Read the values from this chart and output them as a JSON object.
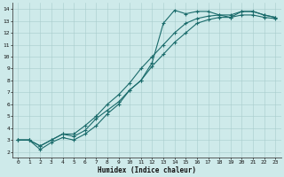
{
  "xlabel": "Humidex (Indice chaleur)",
  "bg_color": "#ceeaea",
  "line_color": "#1a6b6b",
  "grid_color": "#a8cccc",
  "xlim": [
    -0.5,
    23.5
  ],
  "ylim": [
    1.5,
    14.5
  ],
  "xticks": [
    0,
    1,
    2,
    3,
    4,
    5,
    6,
    7,
    8,
    9,
    10,
    11,
    12,
    13,
    14,
    15,
    16,
    17,
    18,
    19,
    20,
    21,
    22,
    23
  ],
  "yticks": [
    2,
    3,
    4,
    5,
    6,
    7,
    8,
    9,
    10,
    11,
    12,
    13,
    14
  ],
  "curve1_x": [
    0,
    1,
    2,
    3,
    4,
    5,
    6,
    7,
    8,
    9,
    10,
    11,
    12,
    13,
    14,
    15,
    16,
    17,
    18,
    19,
    20,
    21,
    22,
    23
  ],
  "curve1_y": [
    3.0,
    3.0,
    2.5,
    3.0,
    3.5,
    3.3,
    3.8,
    4.8,
    5.5,
    6.2,
    7.2,
    8.0,
    9.5,
    12.8,
    13.9,
    13.6,
    13.8,
    13.8,
    13.5,
    13.3,
    13.8,
    13.8,
    13.5,
    13.3
  ],
  "curve2_x": [
    0,
    1,
    2,
    3,
    4,
    5,
    6,
    7,
    8,
    9,
    10,
    11,
    12,
    13,
    14,
    15,
    16,
    17,
    18,
    19,
    20,
    21,
    22,
    23
  ],
  "curve2_y": [
    3.0,
    3.0,
    2.2,
    2.8,
    3.2,
    3.0,
    3.5,
    4.2,
    5.2,
    6.0,
    7.2,
    8.0,
    9.2,
    10.2,
    11.2,
    12.0,
    12.8,
    13.1,
    13.3,
    13.3,
    13.5,
    13.5,
    13.3,
    13.2
  ],
  "curve3_x": [
    0,
    1,
    2,
    3,
    4,
    5,
    6,
    7,
    8,
    9,
    10,
    11,
    12,
    13,
    14,
    15,
    16,
    17,
    18,
    19,
    20,
    21,
    22,
    23
  ],
  "curve3_y": [
    3.0,
    3.0,
    2.5,
    3.0,
    3.5,
    3.5,
    4.2,
    5.0,
    6.0,
    6.8,
    7.8,
    9.0,
    10.0,
    11.0,
    12.0,
    12.8,
    13.2,
    13.4,
    13.5,
    13.5,
    13.8,
    13.8,
    13.5,
    13.3
  ]
}
